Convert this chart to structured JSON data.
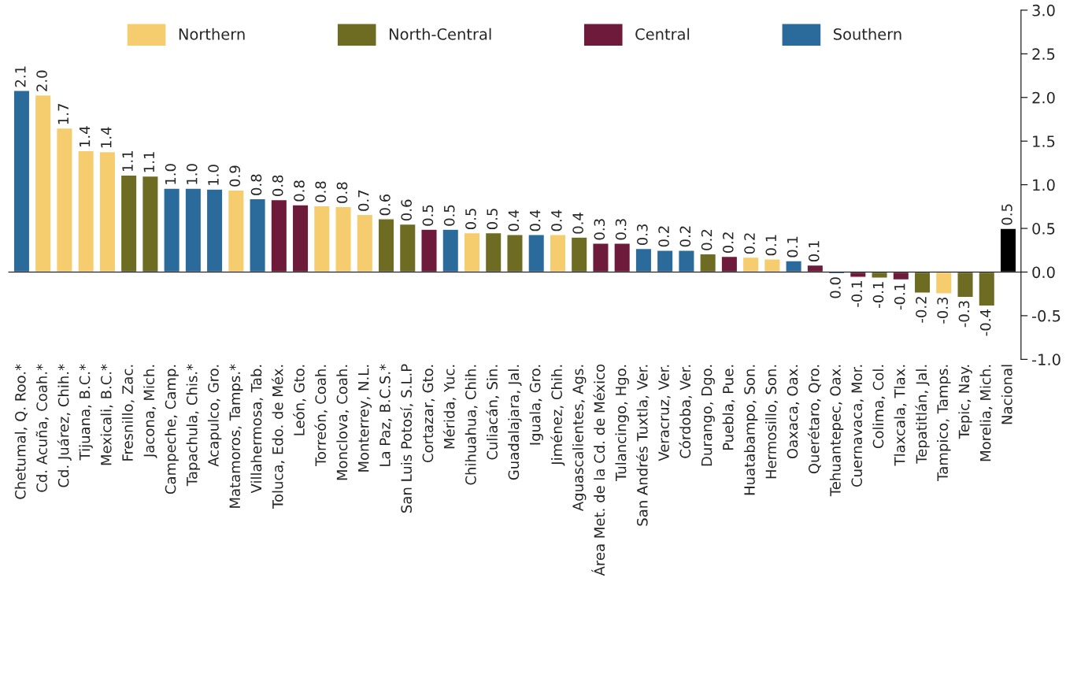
{
  "chart_data": {
    "type": "bar",
    "categories": [
      "Chetumal, Q. Roo.*",
      "Cd. Acuña, Coah.*",
      "Cd. Juárez, Chih.*",
      "Tijuana, B.C.*",
      "Mexicali, B.C.*",
      "Fresnillo, Zac.",
      "Jacona, Mich.",
      "Campeche, Camp.",
      "Tapachula, Chis.*",
      "Acapulco, Gro.",
      "Matamoros, Tamps.*",
      "Villahermosa, Tab.",
      "Toluca, Edo. de Méx.",
      "León, Gto.",
      "Torreón, Coah.",
      "Monclova, Coah.",
      "Monterrey, N.L.",
      "La Paz, B.C.S.*",
      "San Luis Potosí, S.L.P",
      "Cortazar, Gto.",
      "Mérida, Yuc.",
      "Chihuahua, Chih.",
      "Culiacán, Sin.",
      "Guadalajara, Jal.",
      "Iguala, Gro.",
      "Jiménez, Chih.",
      "Aguascalientes, Ags.",
      "Área Met. de la Cd. de México",
      "Tulancingo, Hgo.",
      "San Andrés Tuxtla, Ver.",
      "Veracruz, Ver.",
      "Córdoba, Ver.",
      "Durango, Dgo.",
      "Puebla, Pue.",
      "Huatabampo, Son.",
      "Hermosillo, Son.",
      "Oaxaca, Oax.",
      "Querétaro, Qro.",
      "Tehuantepec, Oax.",
      "Cuernavaca, Mor.",
      "Colima, Col.",
      "Tlaxcala, Tlax.",
      "Tepatitlán, Jal.",
      "Tampico, Tamps.",
      "Tepic, Nay.",
      "Morelia, Mich.",
      "Nacional"
    ],
    "series": [
      {
        "name": "Northern",
        "color": "#f5cd6e",
        "values": [
          null,
          2.03,
          1.65,
          1.39,
          1.38,
          null,
          null,
          null,
          null,
          null,
          0.94,
          null,
          null,
          null,
          0.76,
          0.75,
          0.66,
          null,
          null,
          null,
          null,
          0.45,
          null,
          null,
          null,
          0.43,
          null,
          null,
          null,
          null,
          null,
          null,
          null,
          null,
          0.17,
          0.15,
          null,
          null,
          null,
          null,
          null,
          null,
          null,
          -0.25,
          null,
          null,
          null
        ],
        "value_labels": [
          null,
          "2.0",
          "1.7",
          "1.4",
          "1.4",
          null,
          null,
          null,
          null,
          null,
          "0.9",
          null,
          null,
          null,
          "0.8",
          "0.8",
          "0.7",
          null,
          null,
          null,
          null,
          "0.5",
          null,
          null,
          null,
          "0.4",
          null,
          null,
          null,
          null,
          null,
          null,
          null,
          null,
          "0.2",
          "0.1",
          null,
          null,
          null,
          null,
          null,
          null,
          null,
          "-0.3",
          null,
          null,
          null
        ]
      },
      {
        "name": "North-Central",
        "color": "#6e6b23",
        "values": [
          null,
          null,
          null,
          null,
          null,
          1.11,
          1.1,
          null,
          null,
          null,
          null,
          null,
          null,
          null,
          null,
          null,
          null,
          0.61,
          0.55,
          null,
          null,
          null,
          0.45,
          0.43,
          null,
          null,
          0.4,
          null,
          null,
          null,
          null,
          null,
          0.21,
          null,
          null,
          null,
          null,
          null,
          null,
          null,
          -0.07,
          null,
          -0.24,
          null,
          -0.29,
          -0.39,
          null
        ],
        "value_labels": [
          null,
          null,
          null,
          null,
          null,
          "1.1",
          "1.1",
          null,
          null,
          null,
          null,
          null,
          null,
          null,
          null,
          null,
          null,
          "0.6",
          "0.6",
          null,
          null,
          null,
          "0.5",
          "0.4",
          null,
          null,
          "0.4",
          null,
          null,
          null,
          null,
          null,
          "0.2",
          null,
          null,
          null,
          null,
          null,
          null,
          null,
          "-0.1",
          null,
          "-0.2",
          null,
          "-0.3",
          "-0.4",
          null
        ]
      },
      {
        "name": "Central",
        "color": "#6e1a3a",
        "values": [
          null,
          null,
          null,
          null,
          null,
          null,
          null,
          null,
          null,
          null,
          null,
          null,
          0.83,
          0.77,
          null,
          null,
          null,
          null,
          null,
          0.49,
          null,
          null,
          null,
          null,
          null,
          null,
          null,
          0.33,
          0.33,
          null,
          null,
          null,
          null,
          0.18,
          null,
          null,
          null,
          0.08,
          null,
          -0.06,
          null,
          -0.09,
          null,
          null,
          null,
          null,
          null
        ],
        "value_labels": [
          null,
          null,
          null,
          null,
          null,
          null,
          null,
          null,
          null,
          null,
          null,
          null,
          "0.8",
          "0.8",
          null,
          null,
          null,
          null,
          null,
          "0.5",
          null,
          null,
          null,
          null,
          null,
          null,
          null,
          "0.3",
          "0.3",
          null,
          null,
          null,
          null,
          "0.2",
          null,
          null,
          null,
          "0.1",
          null,
          "-0.1",
          null,
          "-0.1",
          null,
          null,
          null,
          null,
          null
        ]
      },
      {
        "name": "Southern",
        "color": "#2a6b9c",
        "values": [
          2.08,
          null,
          null,
          null,
          null,
          null,
          null,
          0.96,
          0.96,
          0.95,
          null,
          0.84,
          null,
          null,
          null,
          null,
          null,
          null,
          null,
          null,
          0.49,
          null,
          null,
          null,
          0.43,
          null,
          null,
          null,
          null,
          0.27,
          0.25,
          0.25,
          null,
          null,
          null,
          null,
          0.13,
          null,
          -0.02,
          null,
          null,
          null,
          null,
          null,
          null,
          null,
          null
        ],
        "value_labels": [
          "2.1",
          null,
          null,
          null,
          null,
          null,
          null,
          "1.0",
          "1.0",
          "1.0",
          null,
          "0.8",
          null,
          null,
          null,
          null,
          null,
          null,
          null,
          null,
          "0.5",
          null,
          null,
          null,
          "0.4",
          null,
          null,
          null,
          null,
          "0.3",
          "0.2",
          "0.2",
          null,
          null,
          null,
          null,
          "0.1",
          null,
          "0.0",
          null,
          null,
          null,
          null,
          null,
          null,
          null,
          null
        ]
      },
      {
        "color": "#000000",
        "values": [
          null,
          null,
          null,
          null,
          null,
          null,
          null,
          null,
          null,
          null,
          null,
          null,
          null,
          null,
          null,
          null,
          null,
          null,
          null,
          null,
          null,
          null,
          null,
          null,
          null,
          null,
          null,
          null,
          null,
          null,
          null,
          null,
          null,
          null,
          null,
          null,
          null,
          null,
          null,
          null,
          null,
          null,
          null,
          null,
          null,
          null,
          0.5
        ],
        "value_labels": [
          null,
          null,
          null,
          null,
          null,
          null,
          null,
          null,
          null,
          null,
          null,
          null,
          null,
          null,
          null,
          null,
          null,
          null,
          null,
          null,
          null,
          null,
          null,
          null,
          null,
          null,
          null,
          null,
          null,
          null,
          null,
          null,
          null,
          null,
          null,
          null,
          null,
          null,
          null,
          null,
          null,
          null,
          null,
          null,
          null,
          null,
          "0.5"
        ]
      }
    ],
    "ylim": [
      -1.0,
      3.0
    ],
    "yticks": [
      {
        "value": -1.0,
        "label": "-1.0"
      },
      {
        "value": -0.5,
        "label": "-0.5"
      },
      {
        "value": 0,
        "label": "0.0"
      },
      {
        "value": 0.5,
        "label": "0.5"
      },
      {
        "value": 1.0,
        "label": "1.0"
      },
      {
        "value": 1.5,
        "label": "1.5"
      },
      {
        "value": 2.0,
        "label": "2.0"
      },
      {
        "value": 2.5,
        "label": "2.5"
      },
      {
        "value": 3.0,
        "label": "3.0"
      }
    ],
    "legend": "top"
  }
}
